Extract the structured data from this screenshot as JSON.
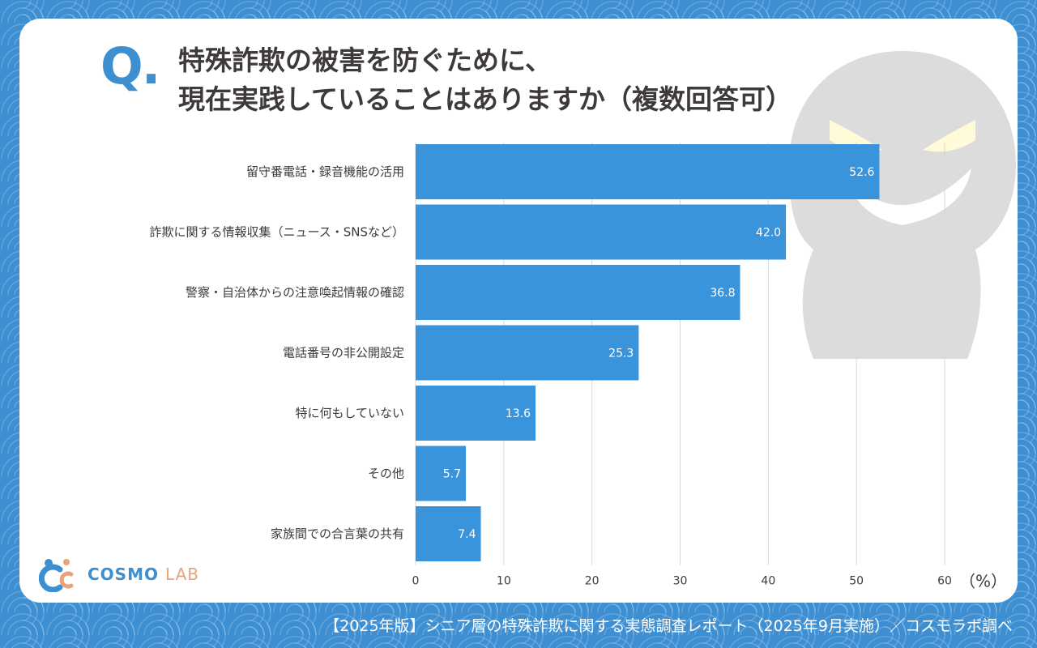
{
  "question": {
    "mark": "Q.",
    "line1": "特殊詐欺の被害を防ぐために、",
    "line2": "現在実践していることはありますか（複数回答可）"
  },
  "chart_data": {
    "type": "bar",
    "orientation": "horizontal",
    "categories": [
      "留守番電話・録音機能の活用",
      "詐欺に関する情報収集（ニュース・SNSなど）",
      "警察・自治体からの注意喚起情報の確認",
      "電話番号の非公開設定",
      "特に何もしていない",
      "その他",
      "家族間での合言葉の共有"
    ],
    "values": [
      52.6,
      42.0,
      36.8,
      25.3,
      13.6,
      5.7,
      7.4
    ],
    "value_labels": [
      "52.6",
      "42.0",
      "36.8",
      "25.3",
      "13.6",
      "5.7",
      "7.4"
    ],
    "xlim": [
      0,
      60
    ],
    "xticks": [
      "0",
      "10",
      "20",
      "30",
      "40",
      "50",
      "60"
    ],
    "unit": "（%）",
    "bar_color": "#3a94dc",
    "grid": true
  },
  "logo": {
    "main": "COSMO",
    "sub": "LAB"
  },
  "footer": "【2025年版】シニア層の特殊詐欺に関する実態調査レポート（2025年9月実施）／コスモラボ調べ"
}
